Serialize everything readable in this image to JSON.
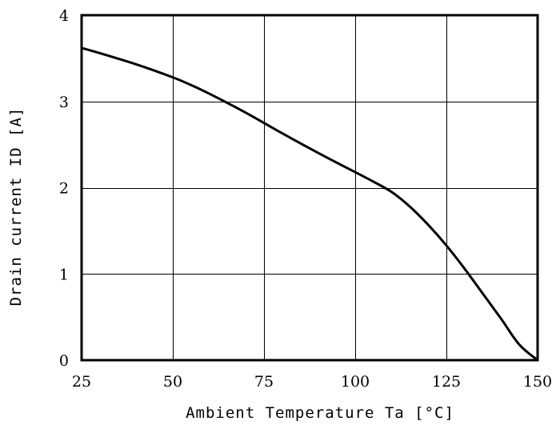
{
  "chart_data": {
    "type": "line",
    "xlabel": "Ambient Temperature Ta [°C]",
    "ylabel": "Drain current ID [A]",
    "xlim": [
      25,
      150
    ],
    "ylim": [
      0,
      4
    ],
    "x_ticks": [
      "25",
      "50",
      "75",
      "100",
      "125",
      "150"
    ],
    "y_ticks": [
      "0",
      "1",
      "2",
      "3",
      "4"
    ],
    "grid": true,
    "series": [
      {
        "x": [
          25,
          30,
          40,
          50,
          55,
          60,
          70,
          80,
          90,
          100,
          105,
          110,
          115,
          120,
          125,
          130,
          135,
          140,
          145,
          150
        ],
        "y": [
          3.62,
          3.56,
          3.43,
          3.28,
          3.19,
          3.09,
          2.87,
          2.63,
          2.4,
          2.18,
          2.07,
          1.95,
          1.78,
          1.57,
          1.33,
          1.06,
          0.77,
          0.48,
          0.18,
          -0.02
        ]
      }
    ]
  }
}
